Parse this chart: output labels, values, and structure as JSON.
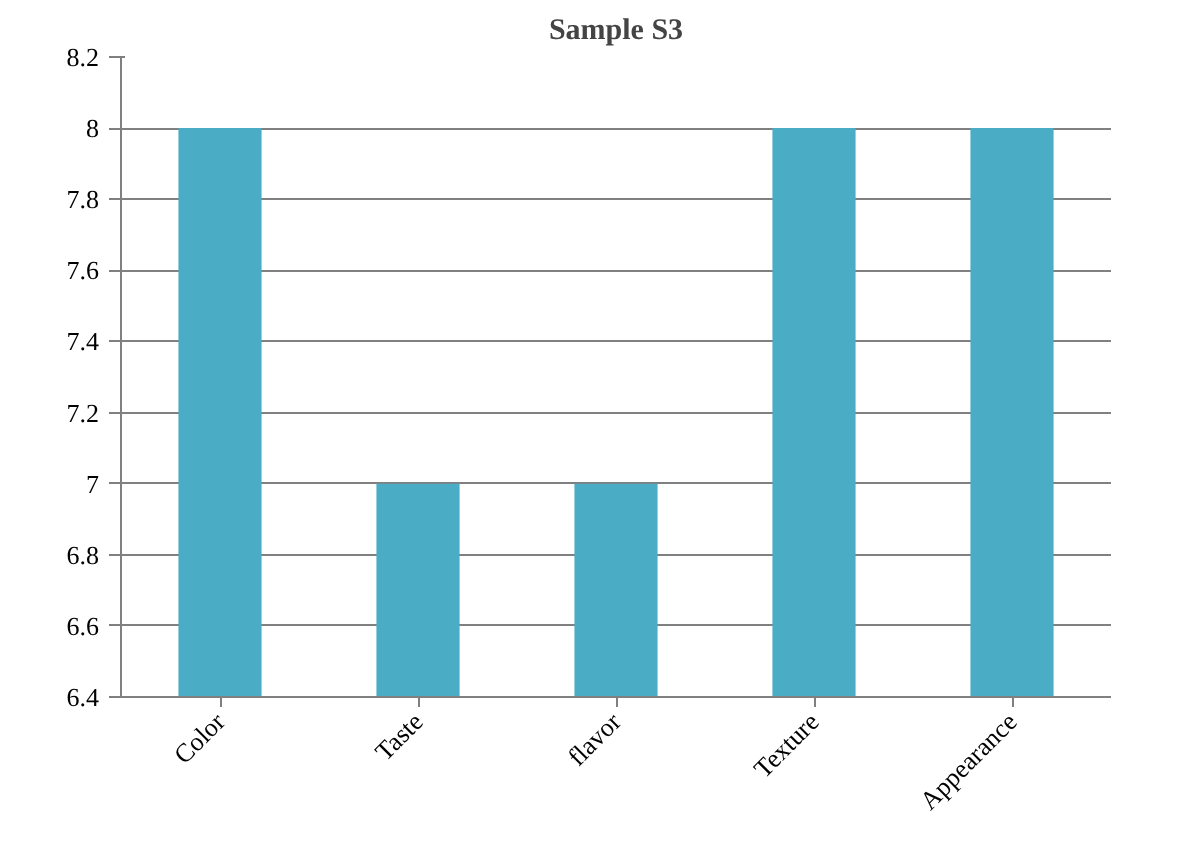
{
  "chart_data": {
    "type": "bar",
    "title": "Sample S3",
    "categories": [
      "Color",
      "Taste",
      "flavor",
      "Texture",
      "Appearance"
    ],
    "values": [
      8,
      7,
      7,
      8,
      8
    ],
    "color": "#4bacc6",
    "ylim": [
      6.4,
      8.2
    ],
    "yticks": [
      6.4,
      6.6,
      6.8,
      7,
      7.2,
      7.4,
      7.6,
      7.8,
      8,
      8.2
    ],
    "grid": "y"
  }
}
